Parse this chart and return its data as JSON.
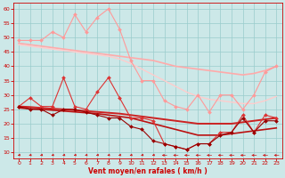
{
  "x": [
    0,
    1,
    2,
    3,
    4,
    5,
    6,
    7,
    8,
    9,
    10,
    11,
    12,
    13,
    14,
    15,
    16,
    17,
    18,
    19,
    20,
    21,
    22,
    23
  ],
  "series": [
    {
      "name": "rafales_max",
      "color": "#ff9999",
      "linewidth": 0.8,
      "marker": "D",
      "markersize": 2.0,
      "values": [
        49,
        49,
        49,
        52,
        50,
        58,
        52,
        57,
        60,
        53,
        42,
        35,
        35,
        28,
        26,
        25,
        30,
        24,
        30,
        30,
        25,
        30,
        38,
        40
      ]
    },
    {
      "name": "rafales_trend1",
      "color": "#ffaaaa",
      "linewidth": 1.2,
      "marker": null,
      "markersize": 0,
      "values": [
        48.0,
        47.5,
        47.0,
        46.5,
        46.0,
        45.5,
        45.0,
        44.5,
        44.0,
        43.5,
        43.0,
        42.5,
        42.0,
        41.0,
        40.0,
        39.5,
        39.0,
        38.5,
        38.0,
        37.5,
        37.0,
        37.5,
        38.5,
        40.0
      ]
    },
    {
      "name": "rafales_trend2",
      "color": "#ffcccc",
      "linewidth": 1.0,
      "marker": null,
      "markersize": 0,
      "values": [
        47.5,
        47.0,
        46.5,
        46.0,
        45.5,
        45.0,
        44.5,
        44.0,
        43.5,
        42.5,
        41.0,
        39.0,
        37.0,
        35.0,
        33.0,
        31.0,
        29.5,
        28.5,
        28.0,
        27.5,
        27.0,
        27.0,
        28.0,
        29.5
      ]
    },
    {
      "name": "vent_max",
      "color": "#dd3333",
      "linewidth": 0.8,
      "marker": "D",
      "markersize": 2.0,
      "values": [
        26,
        29,
        26,
        26,
        36,
        26,
        25,
        31,
        36,
        29,
        22,
        22,
        21,
        13,
        12,
        11,
        13,
        13,
        17,
        17,
        23,
        17,
        23,
        22
      ]
    },
    {
      "name": "vent_trend1",
      "color": "#cc2222",
      "linewidth": 1.4,
      "marker": null,
      "markersize": 0,
      "values": [
        26.0,
        25.8,
        25.5,
        25.2,
        25.0,
        24.7,
        24.4,
        24.1,
        23.8,
        23.5,
        23.0,
        22.5,
        22.0,
        21.5,
        21.0,
        20.5,
        20.0,
        20.0,
        20.0,
        20.0,
        20.5,
        21.0,
        21.5,
        22.0
      ]
    },
    {
      "name": "vent_trend2",
      "color": "#bb1111",
      "linewidth": 1.2,
      "marker": null,
      "markersize": 0,
      "values": [
        25.5,
        25.2,
        25.0,
        24.7,
        24.4,
        24.1,
        23.8,
        23.5,
        23.0,
        22.5,
        22.0,
        21.0,
        20.0,
        19.0,
        18.0,
        17.0,
        16.0,
        16.0,
        16.0,
        16.5,
        17.0,
        17.5,
        18.0,
        18.5
      ]
    },
    {
      "name": "vent_min",
      "color": "#990000",
      "linewidth": 0.8,
      "marker": "D",
      "markersize": 2.0,
      "values": [
        26,
        25,
        25,
        23,
        25,
        25,
        24,
        23,
        22,
        22,
        19,
        18,
        14,
        13,
        12,
        11,
        13,
        13,
        16,
        17,
        22,
        17,
        21,
        21
      ]
    }
  ],
  "arrow_angles": [
    225,
    225,
    225,
    225,
    225,
    225,
    225,
    225,
    225,
    225,
    225,
    225,
    225,
    270,
    270,
    270,
    270,
    270,
    270,
    270,
    270,
    270,
    270,
    270
  ],
  "xlabel": "Vent moyen/en rafales ( km/h )",
  "xlim": [
    -0.5,
    23.5
  ],
  "ylim": [
    8,
    62
  ],
  "yticks": [
    10,
    15,
    20,
    25,
    30,
    35,
    40,
    45,
    50,
    55,
    60
  ],
  "xticks": [
    0,
    1,
    2,
    3,
    4,
    5,
    6,
    7,
    8,
    9,
    10,
    11,
    12,
    13,
    14,
    15,
    16,
    17,
    18,
    19,
    20,
    21,
    22,
    23
  ],
  "bg_color": "#cce8e8",
  "grid_color": "#99cccc",
  "arrow_color": "#cc2222",
  "tick_color": "#cc0000",
  "xlabel_color": "#cc0000"
}
